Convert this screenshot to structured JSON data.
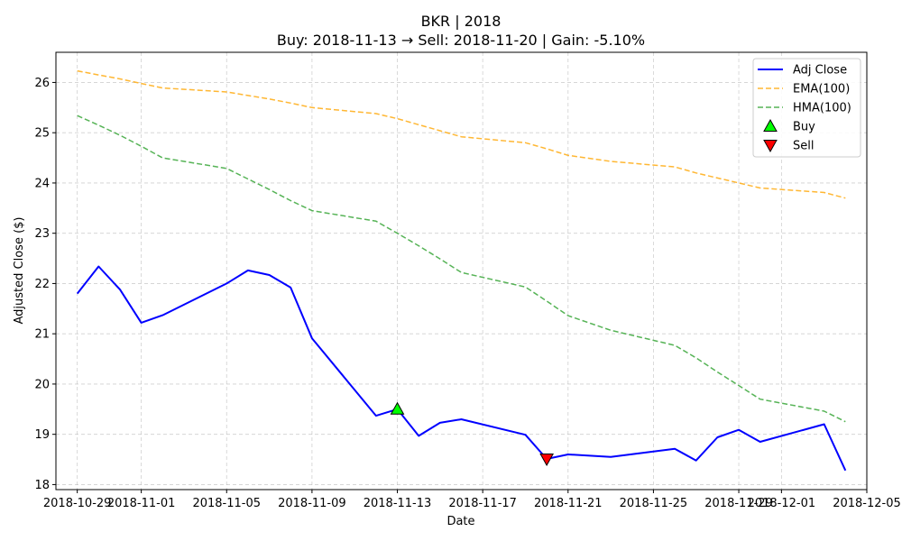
{
  "chart_data": {
    "type": "line",
    "title": "BKR | 2018",
    "subtitle": "Buy: 2018-11-13  →  Sell: 2018-11-20  |  Gain: -5.10%",
    "xlabel": "Date",
    "ylabel": "Adjusted Close ($)",
    "xlim": [
      "2018-10-28",
      "2018-12-05"
    ],
    "ylim": [
      17.9,
      26.6
    ],
    "grid": true,
    "legend_position": "top-right",
    "x_ticks": [
      "2018-10-29",
      "2018-11-01",
      "2018-11-05",
      "2018-11-09",
      "2018-11-13",
      "2018-11-17",
      "2018-11-21",
      "2018-11-25",
      "2018-11-29",
      "2018-12-01",
      "2018-12-05"
    ],
    "y_ticks": [
      18,
      19,
      20,
      21,
      22,
      23,
      24,
      25,
      26
    ],
    "dates": [
      "2018-10-29",
      "2018-10-30",
      "2018-10-31",
      "2018-11-01",
      "2018-11-02",
      "2018-11-05",
      "2018-11-06",
      "2018-11-07",
      "2018-11-08",
      "2018-11-09",
      "2018-11-12",
      "2018-11-13",
      "2018-11-14",
      "2018-11-15",
      "2018-11-16",
      "2018-11-19",
      "2018-11-20",
      "2018-11-21",
      "2018-11-23",
      "2018-11-26",
      "2018-11-27",
      "2018-11-28",
      "2018-11-29",
      "2018-11-30",
      "2018-12-03",
      "2018-12-04"
    ],
    "series": [
      {
        "name": "Adj Close",
        "color": "#0000ff",
        "style": "solid",
        "values": [
          21.8,
          22.34,
          21.88,
          21.22,
          21.37,
          22.0,
          22.26,
          22.17,
          21.92,
          20.91,
          19.37,
          19.5,
          18.97,
          19.23,
          19.3,
          18.99,
          18.51,
          18.6,
          18.55,
          18.71,
          18.48,
          18.94,
          19.09,
          18.85,
          19.2,
          18.28
        ]
      },
      {
        "name": "EMA(100)",
        "color": "#ffa500",
        "style": "dashed",
        "values": [
          26.23,
          26.15,
          26.07,
          25.98,
          25.89,
          25.81,
          25.74,
          25.67,
          25.59,
          25.5,
          25.38,
          25.28,
          25.16,
          25.04,
          24.92,
          24.8,
          24.68,
          24.55,
          24.43,
          24.32,
          24.2,
          24.1,
          24.0,
          23.9,
          23.81,
          23.7
        ]
      },
      {
        "name": "HMA(100)",
        "color": "#2ca02c",
        "style": "dashed",
        "values": [
          25.34,
          25.15,
          24.95,
          24.73,
          24.5,
          24.29,
          24.08,
          23.87,
          23.65,
          23.45,
          23.24,
          23.0,
          22.75,
          22.49,
          22.22,
          21.93,
          21.65,
          21.36,
          21.07,
          20.77,
          20.52,
          20.24,
          19.97,
          19.7,
          19.46,
          19.25
        ]
      }
    ],
    "markers": [
      {
        "name": "Buy",
        "date": "2018-11-13",
        "value": 19.5,
        "symbol": "triangle-up",
        "color": "#00ff00"
      },
      {
        "name": "Sell",
        "date": "2018-11-20",
        "value": 18.51,
        "symbol": "triangle-down",
        "color": "#ff0000"
      }
    ]
  }
}
